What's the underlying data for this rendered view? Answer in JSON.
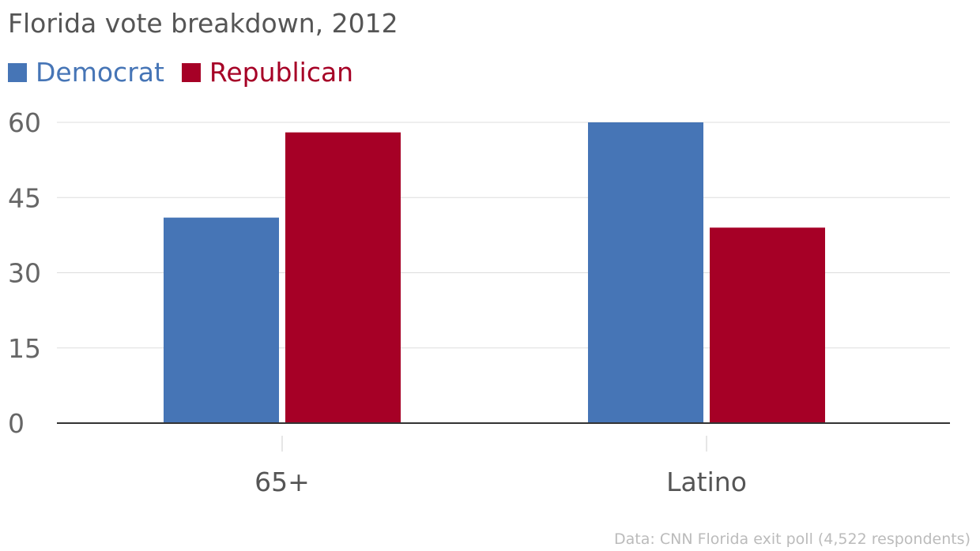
{
  "chart_data": {
    "type": "bar",
    "title": "Florida vote breakdown, 2012",
    "categories": [
      "65+",
      "Latino"
    ],
    "series": [
      {
        "name": "Democrat",
        "values": [
          41,
          60
        ],
        "color": "#4675b6"
      },
      {
        "name": "Republican",
        "values": [
          58,
          39
        ],
        "color": "#a60026"
      }
    ],
    "yticks": [
      "0",
      "15",
      "30",
      "45",
      "60"
    ],
    "ylim": [
      0,
      60
    ],
    "xlabel": "",
    "ylabel": "",
    "grid": true,
    "legend_position": "top-left",
    "source": "Data: CNN Florida exit poll (4,522 respondents)"
  }
}
